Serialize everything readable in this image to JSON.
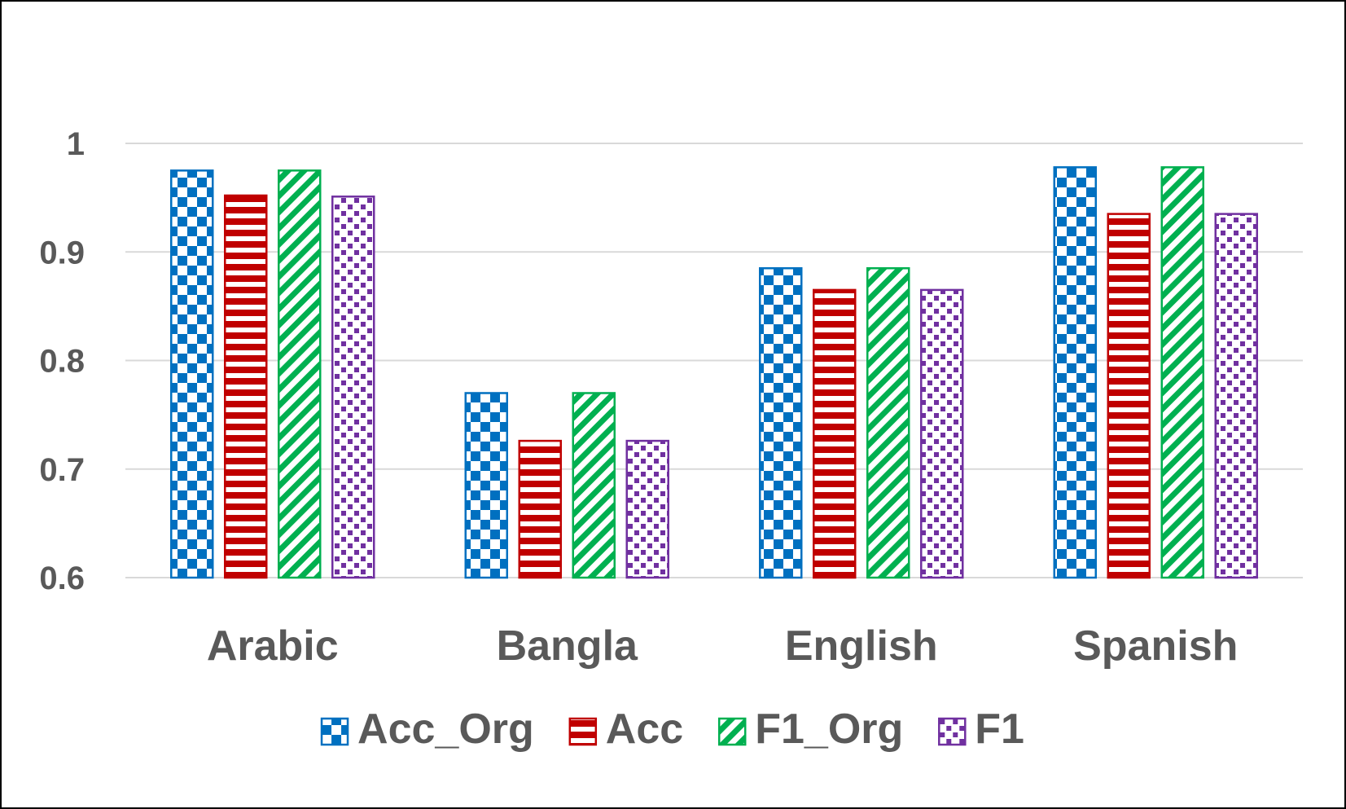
{
  "chart_data": {
    "type": "bar",
    "categories": [
      "Arabic",
      "Bangla",
      "English",
      "Spanish"
    ],
    "series": [
      {
        "name": "Acc_Org",
        "color": "#0070C0",
        "pattern": "checkerboard",
        "values": [
          0.975,
          0.77,
          0.885,
          0.978
        ]
      },
      {
        "name": "Acc",
        "color": "#C00000",
        "pattern": "horizontal-stripes",
        "values": [
          0.952,
          0.726,
          0.865,
          0.935
        ]
      },
      {
        "name": "F1_Org",
        "color": "#00B050",
        "pattern": "diagonal-stripes",
        "values": [
          0.975,
          0.77,
          0.885,
          0.978
        ]
      },
      {
        "name": "F1",
        "color": "#7030A0",
        "pattern": "dotted-squares",
        "values": [
          0.951,
          0.726,
          0.865,
          0.935
        ]
      }
    ],
    "yticks": [
      "0.6",
      "0.7",
      "0.8",
      "0.9",
      "1"
    ],
    "ylim": [
      0.6,
      1.0
    ],
    "grid": true,
    "legend_position": "bottom",
    "title": "",
    "xlabel": "",
    "ylabel": ""
  }
}
